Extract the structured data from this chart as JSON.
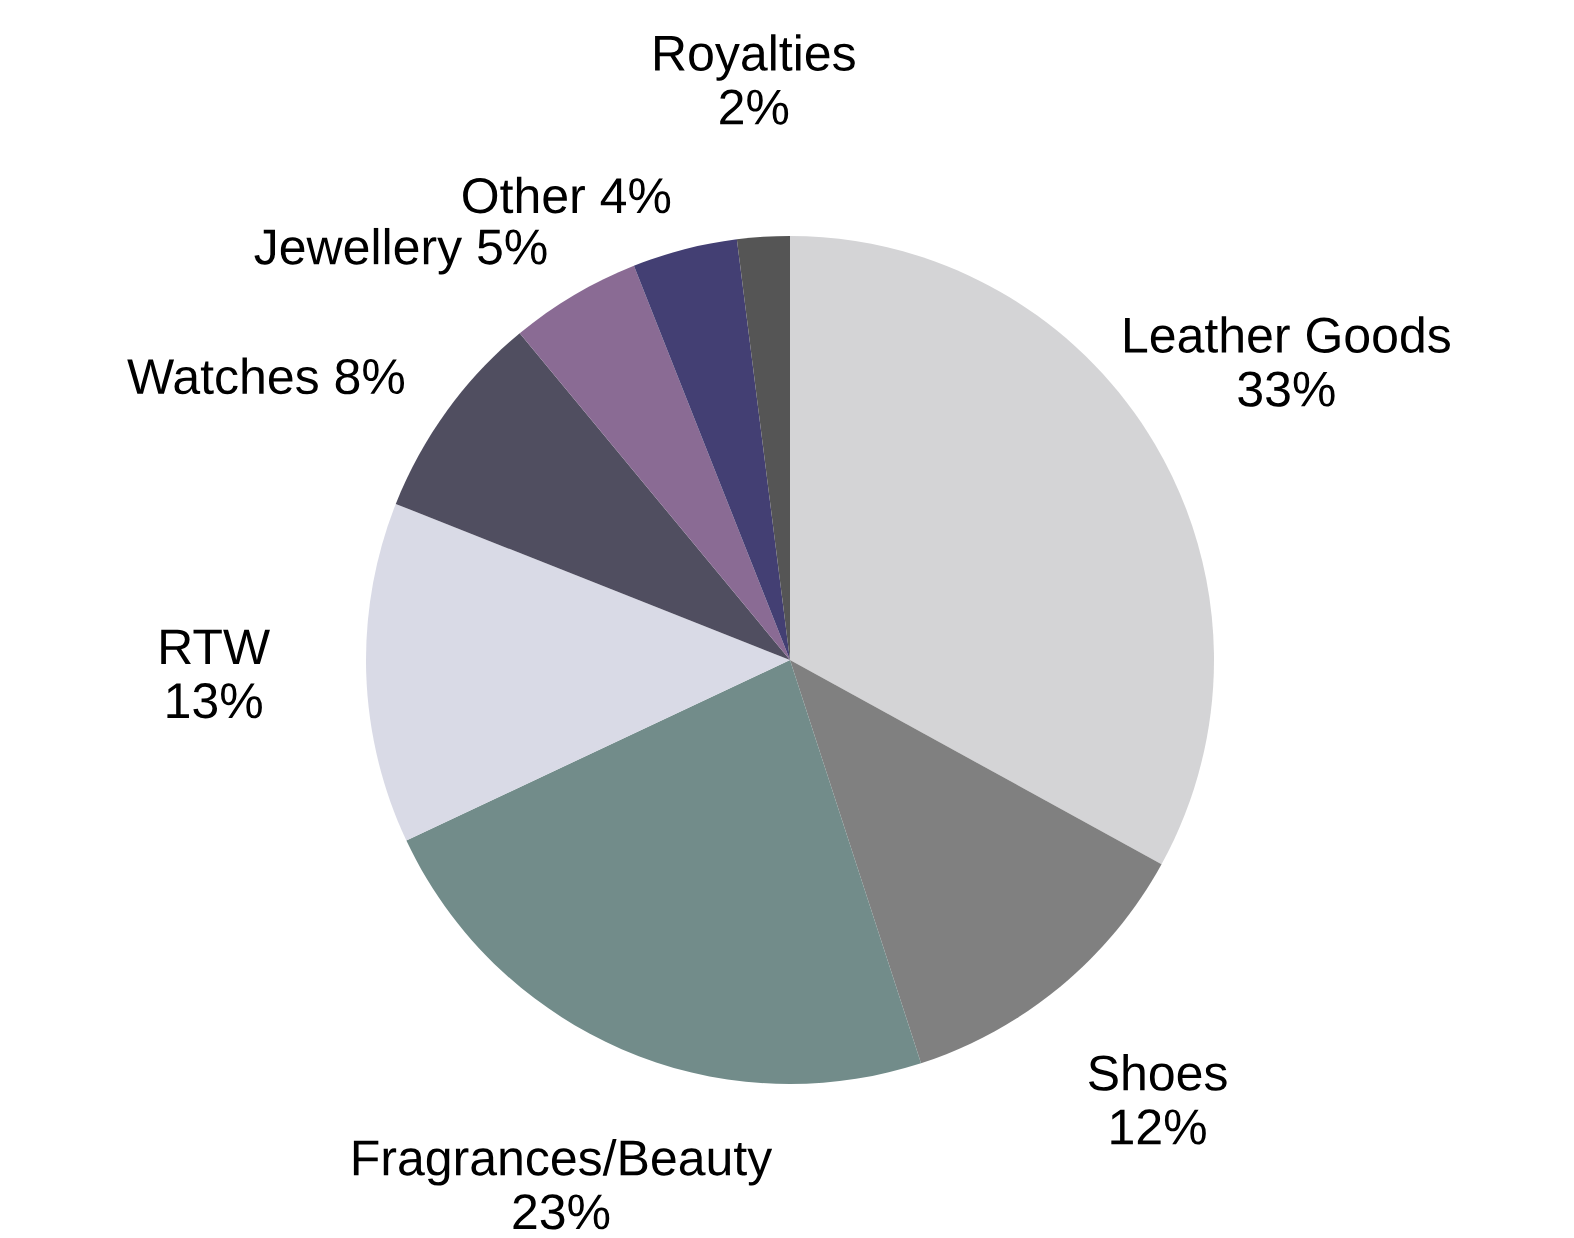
{
  "chart_data": {
    "type": "pie",
    "categories": [
      "Leather Goods",
      "Shoes",
      "Fragrances/Beauty",
      "RTW",
      "Watches",
      "Jewellery",
      "Other",
      "Royalties"
    ],
    "values": [
      33,
      12,
      23,
      13,
      8,
      5,
      4,
      2
    ],
    "value_labels": [
      "33%",
      "12%",
      "23%",
      "13%",
      "8%",
      "5%",
      "4%",
      "2%"
    ],
    "colors": [
      "#d4d4d6",
      "#808080",
      "#728c8a",
      "#d9dae6",
      "#504e60",
      "#8a6b94",
      "#433f73",
      "#555555"
    ]
  }
}
